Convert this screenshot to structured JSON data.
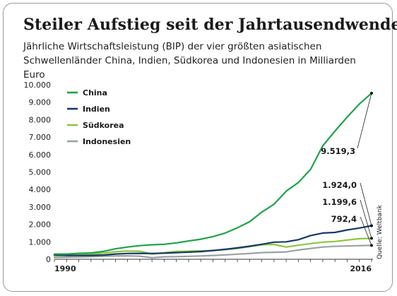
{
  "chart_data": {
    "type": "line",
    "title": "Steiler Aufstieg seit der Jahrtausendwende",
    "subtitle": "Jährliche Wirtschaftsleistung (BIP) der vier größten asiatischen Schwellenländer China, Indien, Südkorea und Indonesien in Milliarden Euro",
    "xlabel": "",
    "ylabel": "",
    "x": [
      1990,
      1991,
      1992,
      1993,
      1994,
      1995,
      1996,
      1997,
      1998,
      1999,
      2000,
      2001,
      2002,
      2003,
      2004,
      2005,
      2006,
      2007,
      2008,
      2009,
      2010,
      2011,
      2012,
      2013,
      2014,
      2015,
      2016
    ],
    "x_tick_labels": [
      "1990",
      "2016"
    ],
    "ylim": [
      0,
      10000
    ],
    "y_ticks": [
      0,
      1000,
      2000,
      3000,
      4000,
      5000,
      6000,
      7000,
      8000,
      9000,
      10000
    ],
    "y_tick_labels": [
      "0",
      "1.000",
      "2.000",
      "3.000",
      "4.000",
      "5.000",
      "6.000",
      "7.000",
      "8.000",
      "9.000",
      "10.000"
    ],
    "grid": false,
    "legend_position": "top-left",
    "series": [
      {
        "name": "China",
        "color": "#1fa24a",
        "values": [
          300,
          300,
          340,
          360,
          450,
          600,
          700,
          780,
          830,
          860,
          940,
          1050,
          1150,
          1300,
          1500,
          1800,
          2150,
          2700,
          3150,
          3900,
          4400,
          5150,
          6500,
          7350,
          8150,
          8900,
          9519.3
        ]
      },
      {
        "name": "Indien",
        "color": "#173a63",
        "values": [
          250,
          220,
          220,
          220,
          240,
          300,
          330,
          340,
          330,
          350,
          380,
          410,
          440,
          500,
          570,
          650,
          750,
          860,
          980,
          1000,
          1120,
          1360,
          1500,
          1540,
          1680,
          1790,
          1924.0
        ]
      },
      {
        "name": "Südkorea",
        "color": "#8cc63f",
        "values": [
          200,
          230,
          250,
          270,
          350,
          430,
          470,
          460,
          300,
          380,
          450,
          460,
          480,
          500,
          550,
          620,
          720,
          830,
          850,
          700,
          800,
          900,
          980,
          1020,
          1100,
          1180,
          1199.6
        ]
      },
      {
        "name": "Indonesien",
        "color": "#9aa0a3",
        "values": [
          110,
          120,
          130,
          150,
          170,
          190,
          200,
          180,
          90,
          140,
          150,
          170,
          190,
          220,
          250,
          290,
          330,
          380,
          400,
          420,
          530,
          620,
          700,
          740,
          760,
          780,
          792.4
        ]
      }
    ],
    "annotations": [
      {
        "series": "China",
        "label": "9.519,3"
      },
      {
        "series": "Indien",
        "label": "1.924,0"
      },
      {
        "series": "Südkorea",
        "label": "1.199,6"
      },
      {
        "series": "Indonesien",
        "label": "792,4"
      }
    ],
    "source": "Quelle: Weltbank"
  }
}
